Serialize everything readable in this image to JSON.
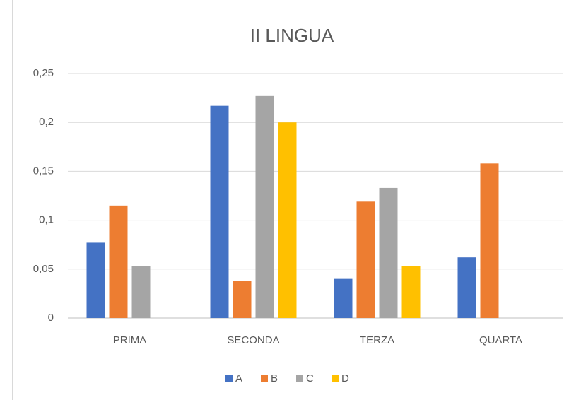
{
  "chart_data": {
    "type": "bar",
    "title": "II LINGUA",
    "categories": [
      "PRIMA",
      "SECONDA",
      "TERZA",
      "QUARTA"
    ],
    "series": [
      {
        "name": "A",
        "color": "#4472c4",
        "values": [
          0.077,
          0.217,
          0.04,
          0.062
        ]
      },
      {
        "name": "B",
        "color": "#ed7d31",
        "values": [
          0.115,
          0.038,
          0.119,
          0.158
        ]
      },
      {
        "name": "C",
        "color": "#a5a5a5",
        "values": [
          0.053,
          0.227,
          0.133,
          0
        ]
      },
      {
        "name": "D",
        "color": "#ffc000",
        "values": [
          0,
          0.2,
          0.053,
          0
        ]
      }
    ],
    "ylim": [
      0,
      0.25
    ],
    "yticks": [
      0,
      {
        "value": 0.05,
        "label": "0,05"
      },
      {
        "value": 0.1,
        "label": "0,1"
      },
      {
        "value": 0.15,
        "label": "0,15"
      },
      {
        "value": 0.2,
        "label": "0,2"
      },
      {
        "value": 0.25,
        "label": "0,25"
      }
    ],
    "grid": true,
    "legend": "bottom"
  }
}
